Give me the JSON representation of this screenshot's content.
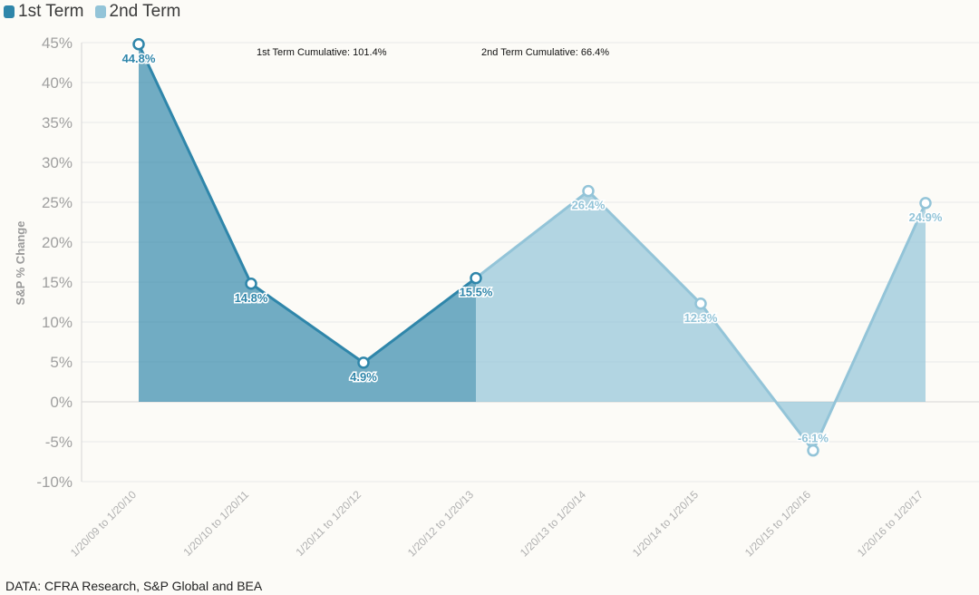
{
  "chart_data": {
    "type": "area",
    "categories": [
      "1/20/09 to 1/20/10",
      "1/20/10 to 1/20/11",
      "1/20/11 to 1/20/12",
      "1/20/12 to 1/20/13",
      "1/20/13 to 1/20/14",
      "1/20/14 to 1/20/15",
      "1/20/15 to 1/20/16",
      "1/20/16 to 1/20/17"
    ],
    "series": [
      {
        "name": "1st Term",
        "color": "#2f86aa",
        "indices": [
          0,
          1,
          2,
          3
        ]
      },
      {
        "name": "2nd Term",
        "color": "#93c4d8",
        "indices": [
          3,
          4,
          5,
          6,
          7
        ]
      }
    ],
    "values": [
      44.8,
      14.8,
      4.9,
      15.5,
      26.4,
      12.3,
      -6.1,
      24.9
    ],
    "data_labels": [
      "44.8%",
      "14.8%",
      "4.9%",
      "15.5%",
      "26.4%",
      "12.3%",
      "-6.1%",
      "24.9%"
    ],
    "ylabel": "S&P % Change",
    "ylim": [
      -10,
      45
    ],
    "yticks": [
      45,
      40,
      35,
      30,
      25,
      20,
      15,
      10,
      5,
      0,
      -5,
      -10
    ],
    "ytick_labels": [
      "45%",
      "40%",
      "35%",
      "30%",
      "25%",
      "20%",
      "15%",
      "10%",
      "5%",
      "0%",
      "-5%",
      "-10%"
    ],
    "grid": true,
    "legend_position": "top-left"
  },
  "annotations": {
    "first_term": "1st Term Cumulative: 101.4%",
    "second_term": "2nd Term Cumulative: 66.4%"
  },
  "source": "DATA: CFRA Research, S&P Global and BEA"
}
